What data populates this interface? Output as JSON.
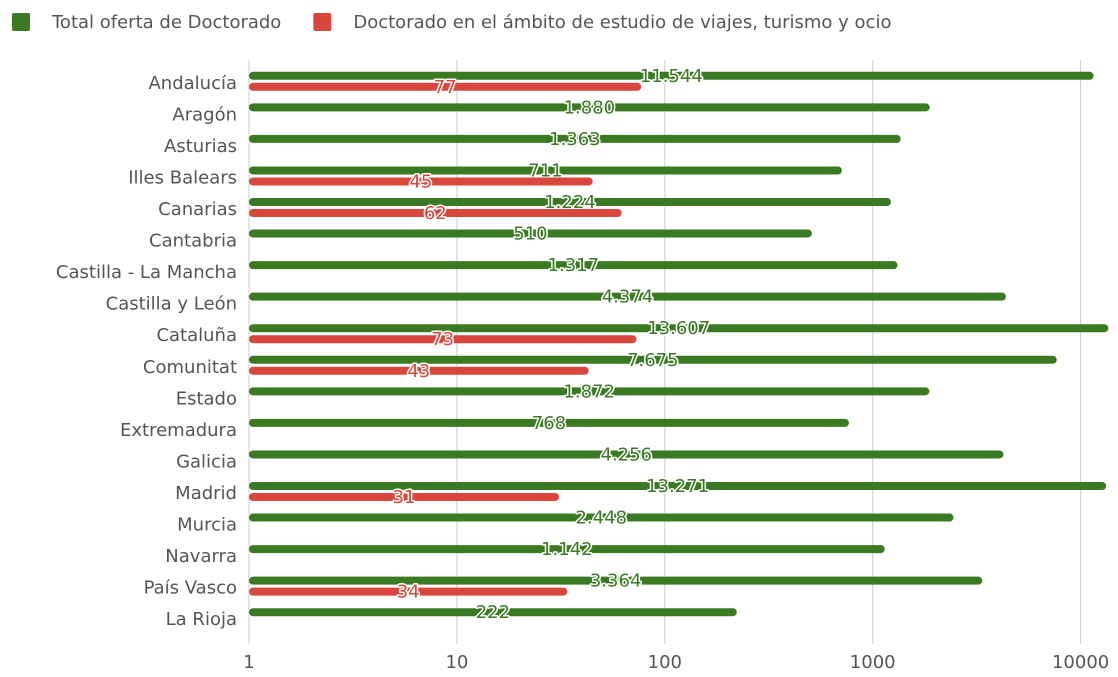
{
  "chart_data": {
    "type": "bar",
    "orientation": "horizontal",
    "log_scale_x": true,
    "grid": true,
    "legend": "top",
    "categories": [
      "Andalucía",
      "Aragón",
      "Asturias",
      "Illes Balears",
      "Canarias",
      "Cantabria",
      "Castilla - La Mancha",
      "Castilla y León",
      "Cataluña",
      "Comunitat",
      "Estado",
      "Extremadura",
      "Galicia",
      "Madrid",
      "Murcia",
      "Navarra",
      "País Vasco",
      "La Rioja"
    ],
    "series": [
      {
        "name": "Total oferta de Doctorado",
        "color": "#3a7a23",
        "values": [
          11544,
          1880,
          1363,
          711,
          1224,
          510,
          1317,
          4374,
          13607,
          7675,
          1872,
          768,
          4256,
          13271,
          2448,
          1142,
          3364,
          222
        ],
        "value_labels": [
          "11.544",
          "1.880",
          "1.363",
          "711",
          "1.224",
          "510",
          "1.317",
          "4.374",
          "13.607",
          "7.675",
          "1.872",
          "768",
          "4.256",
          "13.271",
          "2.448",
          "1.142",
          "3.364",
          "222"
        ]
      },
      {
        "name": "Doctorado en el ámbito de estudio de viajes, turismo y ocio",
        "color": "#d9463b",
        "values": [
          77,
          null,
          null,
          45,
          62,
          null,
          null,
          null,
          73,
          43,
          null,
          null,
          null,
          31,
          null,
          null,
          34,
          null
        ]
      }
    ],
    "xlim": [
      1,
      14000
    ],
    "xticks": [
      1,
      10,
      100,
      1000,
      10000
    ]
  }
}
